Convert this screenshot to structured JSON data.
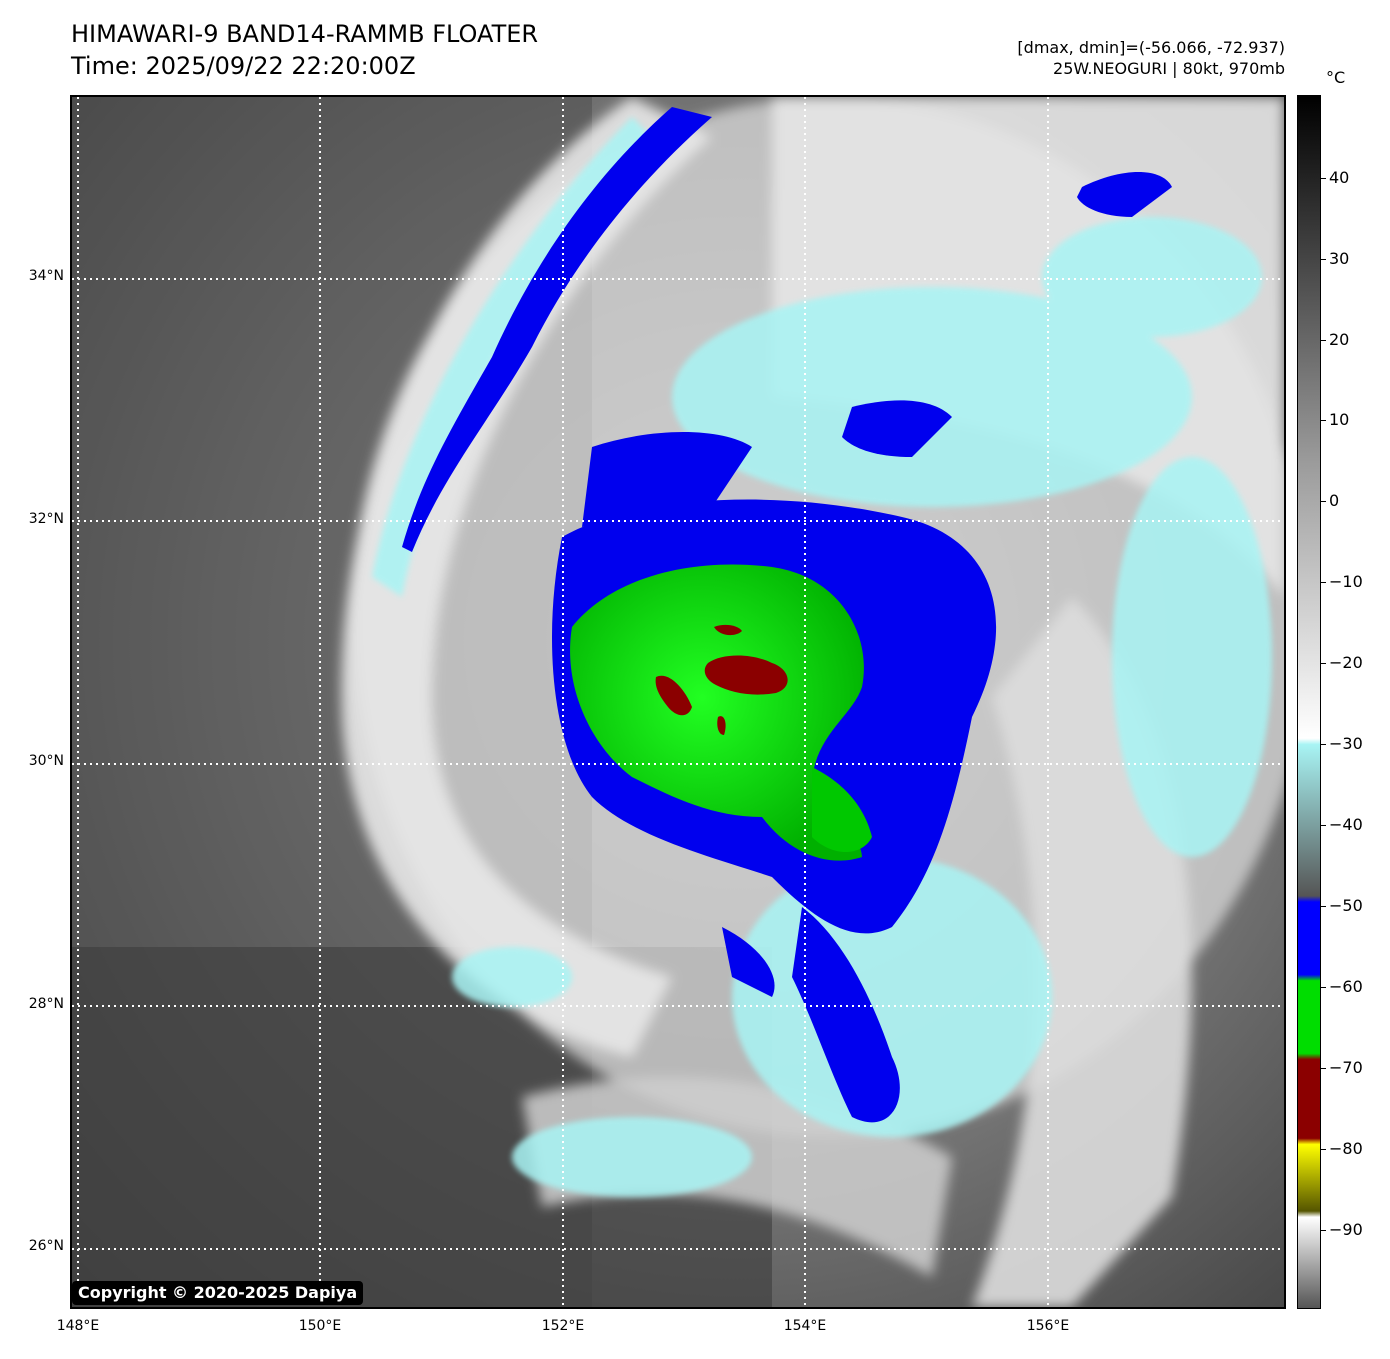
{
  "header": {
    "title": "HIMAWARI-9 BAND14-RAMMB FLOATER",
    "time": "Time: 2025/09/22 22:20:00Z",
    "dminmax": "[dmax, dmin]=(-56.066, -72.937)",
    "storm": "25W.NEOGURI | 80kt, 970mb"
  },
  "map": {
    "lat_labels": [
      "34°N",
      "32°N",
      "30°N",
      "28°N",
      "26°N"
    ],
    "lon_labels": [
      "148°E",
      "150°E",
      "152°E",
      "154°E",
      "156°E"
    ]
  },
  "colorbar": {
    "unit": "°C",
    "ticks": [
      "40",
      "30",
      "20",
      "10",
      "0",
      "−10",
      "−20",
      "−30",
      "−40",
      "−50",
      "−60",
      "−70",
      "−80",
      "−90"
    ],
    "colors": {
      "warm": "#000000",
      "mid": "#9a9a9a",
      "white": "#ffffff",
      "cyan": "#a8f4f4",
      "gray": "#555555",
      "blue": "#0000ff",
      "green": "#00dd00",
      "red": "#8b0000",
      "yellow": "#ffff00"
    }
  },
  "copyright": "Copyright © 2020-2025 Dapiya"
}
